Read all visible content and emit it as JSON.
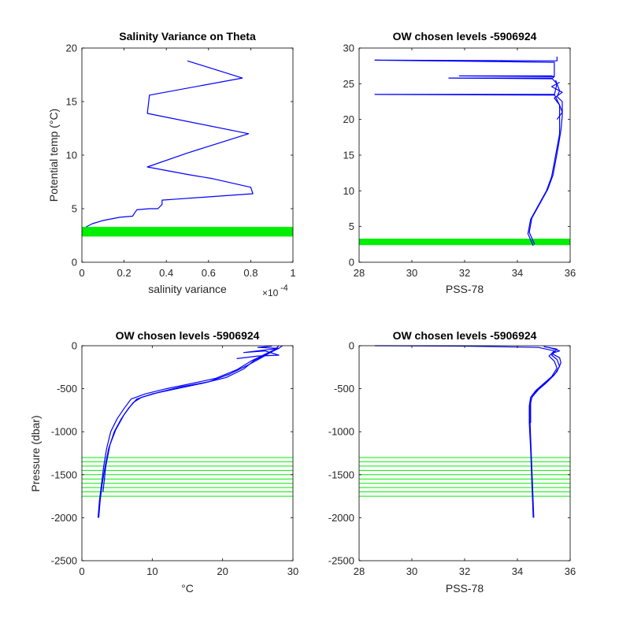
{
  "colors": {
    "series": "#0000ff",
    "highlight": "#00ee00",
    "axis": "#000000"
  },
  "chart_data": [
    {
      "type": "line",
      "title": "Salinity Variance on Theta",
      "xlabel": "salinity variance",
      "ylabel": "Potential temp (°C)",
      "x_exponent": "×10",
      "x_exponent_power": "-4",
      "xlim": [
        0,
        1
      ],
      "ylim": [
        0,
        20
      ],
      "xticks": [
        0,
        0.2,
        0.4,
        0.6,
        0.8,
        1
      ],
      "xtick_labels": [
        "0",
        "0.2",
        "0.4",
        "0.6",
        "0.8",
        "1"
      ],
      "yticks": [
        0,
        5,
        10,
        15,
        20
      ],
      "ytick_labels": [
        "0",
        "5",
        "10",
        "15",
        "20"
      ],
      "highlight_band": {
        "y_from": 2.4,
        "y_to": 3.3
      },
      "series": [
        {
          "values_xy": [
            [
              0.5,
              18.8
            ],
            [
              0.76,
              17.2
            ],
            [
              0.32,
              15.6
            ],
            [
              0.31,
              13.9
            ],
            [
              0.79,
              12.0
            ],
            [
              0.5,
              10.2
            ],
            [
              0.31,
              8.9
            ],
            [
              0.5,
              8.2
            ],
            [
              0.62,
              7.8
            ],
            [
              0.8,
              7.0
            ],
            [
              0.81,
              6.4
            ],
            [
              0.45,
              5.9
            ],
            [
              0.38,
              5.8
            ],
            [
              0.38,
              5.4
            ],
            [
              0.36,
              5.0
            ],
            [
              0.32,
              5.0
            ],
            [
              0.26,
              4.9
            ],
            [
              0.25,
              4.6
            ],
            [
              0.24,
              4.3
            ],
            [
              0.18,
              4.2
            ],
            [
              0.1,
              3.9
            ],
            [
              0.05,
              3.6
            ],
            [
              0.02,
              3.3
            ]
          ]
        }
      ]
    },
    {
      "type": "line",
      "title": "OW chosen levels -5906924",
      "xlabel": "PSS-78",
      "ylabel": "",
      "xlim": [
        28,
        36
      ],
      "ylim": [
        0,
        30
      ],
      "xticks": [
        28,
        30,
        32,
        34,
        36
      ],
      "xtick_labels": [
        "28",
        "30",
        "32",
        "34",
        "36"
      ],
      "yticks": [
        0,
        5,
        10,
        15,
        20,
        25,
        30
      ],
      "ytick_labels": [
        "0",
        "5",
        "10",
        "15",
        "20",
        "25",
        "30"
      ],
      "highlight_band": {
        "y_from": 2.4,
        "y_to": 3.3
      },
      "series": [
        {
          "values_xy": [
            [
              34.6,
              2.3
            ],
            [
              34.4,
              4.0
            ],
            [
              34.5,
              6.0
            ],
            [
              34.8,
              8.0
            ],
            [
              35.1,
              10.0
            ],
            [
              35.3,
              12.0
            ],
            [
              35.4,
              14.0
            ],
            [
              35.5,
              16.0
            ],
            [
              35.6,
              18.0
            ],
            [
              35.6,
              20.0
            ],
            [
              35.6,
              22.0
            ],
            [
              35.4,
              23.5
            ],
            [
              28.6,
              23.5
            ],
            [
              35.4,
              23.4
            ],
            [
              35.5,
              25.0
            ],
            [
              35.3,
              25.8
            ],
            [
              31.4,
              25.8
            ],
            [
              35.3,
              25.7
            ],
            [
              35.4,
              26.0
            ],
            [
              35.3,
              26.1
            ],
            [
              31.8,
              26.1
            ],
            [
              35.4,
              26.0
            ],
            [
              35.4,
              27.0
            ],
            [
              35.4,
              28.0
            ],
            [
              28.6,
              28.3
            ],
            [
              35.5,
              28.2
            ],
            [
              35.5,
              28.8
            ]
          ]
        },
        {
          "values_xy": [
            [
              34.65,
              2.5
            ],
            [
              34.45,
              4.2
            ],
            [
              34.55,
              6.2
            ],
            [
              34.85,
              8.2
            ],
            [
              35.15,
              10.2
            ],
            [
              35.35,
              12.2
            ],
            [
              35.45,
              14.2
            ],
            [
              35.55,
              16.2
            ],
            [
              35.65,
              18.5
            ],
            [
              35.7,
              20.5
            ],
            [
              35.7,
              22.5
            ],
            [
              35.5,
              23.2
            ],
            [
              35.6,
              24.0
            ],
            [
              35.45,
              25.5
            ]
          ]
        },
        {
          "values_xy": [
            [
              35.5,
              20.0
            ],
            [
              35.7,
              21.0
            ],
            [
              35.6,
              22.0
            ],
            [
              35.4,
              23.0
            ],
            [
              35.7,
              23.8
            ],
            [
              35.3,
              24.6
            ],
            [
              35.6,
              25.2
            ]
          ]
        }
      ]
    },
    {
      "type": "line",
      "title": "OW chosen levels -5906924",
      "xlabel": "°C",
      "ylabel": "Pressure (dbar)",
      "xlim": [
        0,
        30
      ],
      "ylim": [
        -2500,
        0
      ],
      "xticks": [
        0,
        10,
        20,
        30
      ],
      "xtick_labels": [
        "0",
        "10",
        "20",
        "30"
      ],
      "yticks": [
        -2500,
        -2000,
        -1500,
        -1000,
        -500,
        0
      ],
      "ytick_labels": [
        "-2500",
        "-2000",
        "-1500",
        "-1000",
        "-500",
        "0"
      ],
      "highlight_lines": [
        -1300,
        -1350,
        -1400,
        -1450,
        -1500,
        -1550,
        -1600,
        -1650,
        -1700,
        -1750
      ],
      "series": [
        {
          "values_xy": [
            [
              2.3,
              -2000
            ],
            [
              2.5,
              -1800
            ],
            [
              2.8,
              -1600
            ],
            [
              3.1,
              -1400
            ],
            [
              3.5,
              -1200
            ],
            [
              4.1,
              -1000
            ],
            [
              5.0,
              -850
            ],
            [
              6.0,
              -730
            ],
            [
              7.0,
              -620
            ],
            [
              9.0,
              -560
            ],
            [
              12.0,
              -500
            ],
            [
              15.0,
              -450
            ],
            [
              19.0,
              -380
            ],
            [
              22.0,
              -280
            ],
            [
              24.0,
              -180
            ],
            [
              26.0,
              -100
            ],
            [
              27.5,
              -40
            ],
            [
              28.0,
              0
            ]
          ]
        },
        {
          "values_xy": [
            [
              2.4,
              -2000
            ],
            [
              2.6,
              -1800
            ],
            [
              2.9,
              -1600
            ],
            [
              3.3,
              -1400
            ],
            [
              3.8,
              -1200
            ],
            [
              4.6,
              -1000
            ],
            [
              5.6,
              -850
            ],
            [
              6.6,
              -730
            ],
            [
              7.8,
              -620
            ],
            [
              10.0,
              -560
            ],
            [
              13.5,
              -500
            ],
            [
              17.0,
              -440
            ],
            [
              20.5,
              -370
            ],
            [
              23.0,
              -270
            ],
            [
              24.5,
              -170
            ],
            [
              26.5,
              -90
            ],
            [
              28.0,
              -30
            ],
            [
              28.5,
              0
            ]
          ]
        },
        {
          "values_xy": [
            [
              3.0,
              -1700
            ],
            [
              3.4,
              -1400
            ],
            [
              4.0,
              -1150
            ],
            [
              4.8,
              -980
            ],
            [
              6.0,
              -800
            ],
            [
              7.3,
              -660
            ],
            [
              8.5,
              -600
            ],
            [
              11.0,
              -540
            ],
            [
              14.0,
              -480
            ],
            [
              18.0,
              -420
            ],
            [
              21.0,
              -330
            ],
            [
              23.5,
              -230
            ],
            [
              25.5,
              -140
            ],
            [
              27.0,
              -70
            ],
            [
              27.8,
              -20
            ]
          ]
        },
        {
          "values_xy": [
            [
              22.0,
              -150
            ],
            [
              25.0,
              -120
            ],
            [
              28.0,
              -110
            ],
            [
              26.0,
              -60
            ],
            [
              23.0,
              -80
            ],
            [
              28.0,
              -30
            ],
            [
              25.0,
              -20
            ],
            [
              27.0,
              -5
            ]
          ]
        }
      ]
    },
    {
      "type": "line",
      "title": "OW chosen levels -5906924",
      "xlabel": "PSS-78",
      "ylabel": "",
      "xlim": [
        28,
        36
      ],
      "ylim": [
        -2500,
        0
      ],
      "xticks": [
        28,
        30,
        32,
        34,
        36
      ],
      "xtick_labels": [
        "28",
        "30",
        "32",
        "34",
        "36"
      ],
      "yticks": [
        -2500,
        -2000,
        -1500,
        -1000,
        -500,
        0
      ],
      "ytick_labels": [
        "-2500",
        "-2000",
        "-1500",
        "-1000",
        "-500",
        "0"
      ],
      "highlight_lines": [
        -1300,
        -1350,
        -1400,
        -1450,
        -1500,
        -1550,
        -1600,
        -1650,
        -1700,
        -1750
      ],
      "series": [
        {
          "values_xy": [
            [
              34.6,
              -2000
            ],
            [
              34.55,
              -1600
            ],
            [
              34.5,
              -1200
            ],
            [
              34.45,
              -900
            ],
            [
              34.45,
              -700
            ],
            [
              34.5,
              -600
            ],
            [
              34.7,
              -520
            ],
            [
              35.0,
              -440
            ],
            [
              35.3,
              -360
            ],
            [
              35.5,
              -260
            ],
            [
              35.4,
              -180
            ],
            [
              35.2,
              -120
            ],
            [
              35.4,
              -60
            ],
            [
              34.8,
              -20
            ],
            [
              32.0,
              -5
            ],
            [
              28.6,
              0
            ]
          ]
        },
        {
          "values_xy": [
            [
              34.62,
              -2000
            ],
            [
              34.57,
              -1600
            ],
            [
              34.52,
              -1200
            ],
            [
              34.48,
              -900
            ],
            [
              34.48,
              -700
            ],
            [
              34.55,
              -600
            ],
            [
              34.8,
              -510
            ],
            [
              35.1,
              -430
            ],
            [
              35.4,
              -340
            ],
            [
              35.6,
              -240
            ],
            [
              35.5,
              -160
            ],
            [
              35.3,
              -110
            ],
            [
              35.5,
              -40
            ],
            [
              35.0,
              -10
            ]
          ]
        },
        {
          "values_xy": [
            [
              34.5,
              -900
            ],
            [
              34.5,
              -650
            ],
            [
              34.6,
              -560
            ],
            [
              34.9,
              -480
            ],
            [
              35.2,
              -400
            ],
            [
              35.5,
              -300
            ],
            [
              35.65,
              -200
            ],
            [
              35.6,
              -140
            ],
            [
              35.3,
              -90
            ],
            [
              35.6,
              -60
            ],
            [
              35.2,
              -20
            ]
          ]
        }
      ]
    }
  ]
}
